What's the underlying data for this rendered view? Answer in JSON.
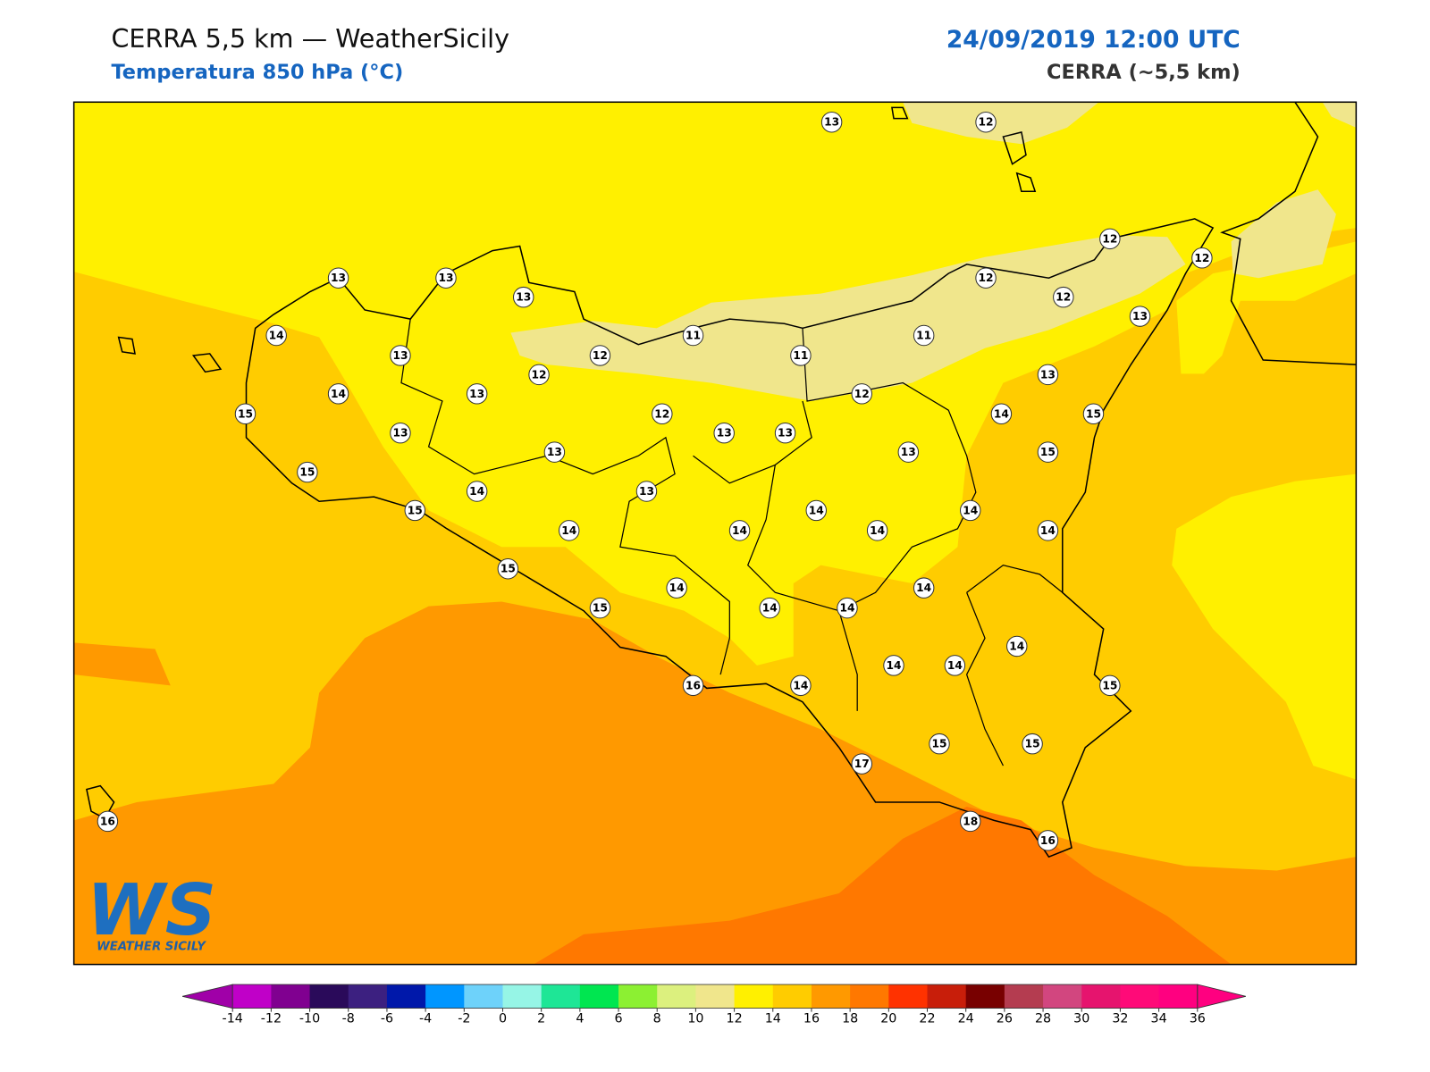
{
  "header": {
    "title": "CERRA 5,5 km — WeatherSicily",
    "subtitle": "Temperatura 850 hPa (°C)",
    "datetime": "24/09/2019 12:00 UTC",
    "model": "CERRA (~5,5 km)"
  },
  "logo": {
    "mark": "WS",
    "name": "WEATHER SICILY"
  },
  "points": [
    13,
    12,
    13,
    13,
    13,
    12,
    12,
    12,
    12,
    13,
    14,
    11,
    11,
    13,
    12,
    11,
    12,
    13,
    14,
    13,
    12,
    15,
    12,
    14,
    15,
    13,
    13,
    13,
    13,
    13,
    15,
    15,
    13,
    14,
    15,
    14,
    14,
    14,
    14,
    14,
    14,
    15,
    14,
    14,
    15,
    14,
    14,
    14,
    14,
    14,
    16,
    14,
    15,
    15,
    15,
    17,
    16,
    18,
    16
  ],
  "colorbar": {
    "ticks": [
      -14,
      -12,
      -10,
      -8,
      -6,
      -4,
      -2,
      0,
      2,
      4,
      6,
      8,
      10,
      12,
      14,
      16,
      18,
      20,
      22,
      24,
      26,
      28,
      30,
      32,
      34,
      36
    ],
    "colors": [
      "#c000c8",
      "#800090",
      "#2a0a5a",
      "#3c2080",
      "#0018aa",
      "#0096ff",
      "#6ed2fa",
      "#96f5e6",
      "#1ee696",
      "#00e650",
      "#8cf032",
      "#dcf07e",
      "#f0e68c",
      "#fff000",
      "#ffcc00",
      "#ff9900",
      "#ff7800",
      "#ff3200",
      "#c81e0a",
      "#780000",
      "#b43c50",
      "#d2467f",
      "#e6146e",
      "#ff0a78",
      "#ff0080"
    ],
    "under": "#a000a8",
    "over": "#ff0080"
  }
}
